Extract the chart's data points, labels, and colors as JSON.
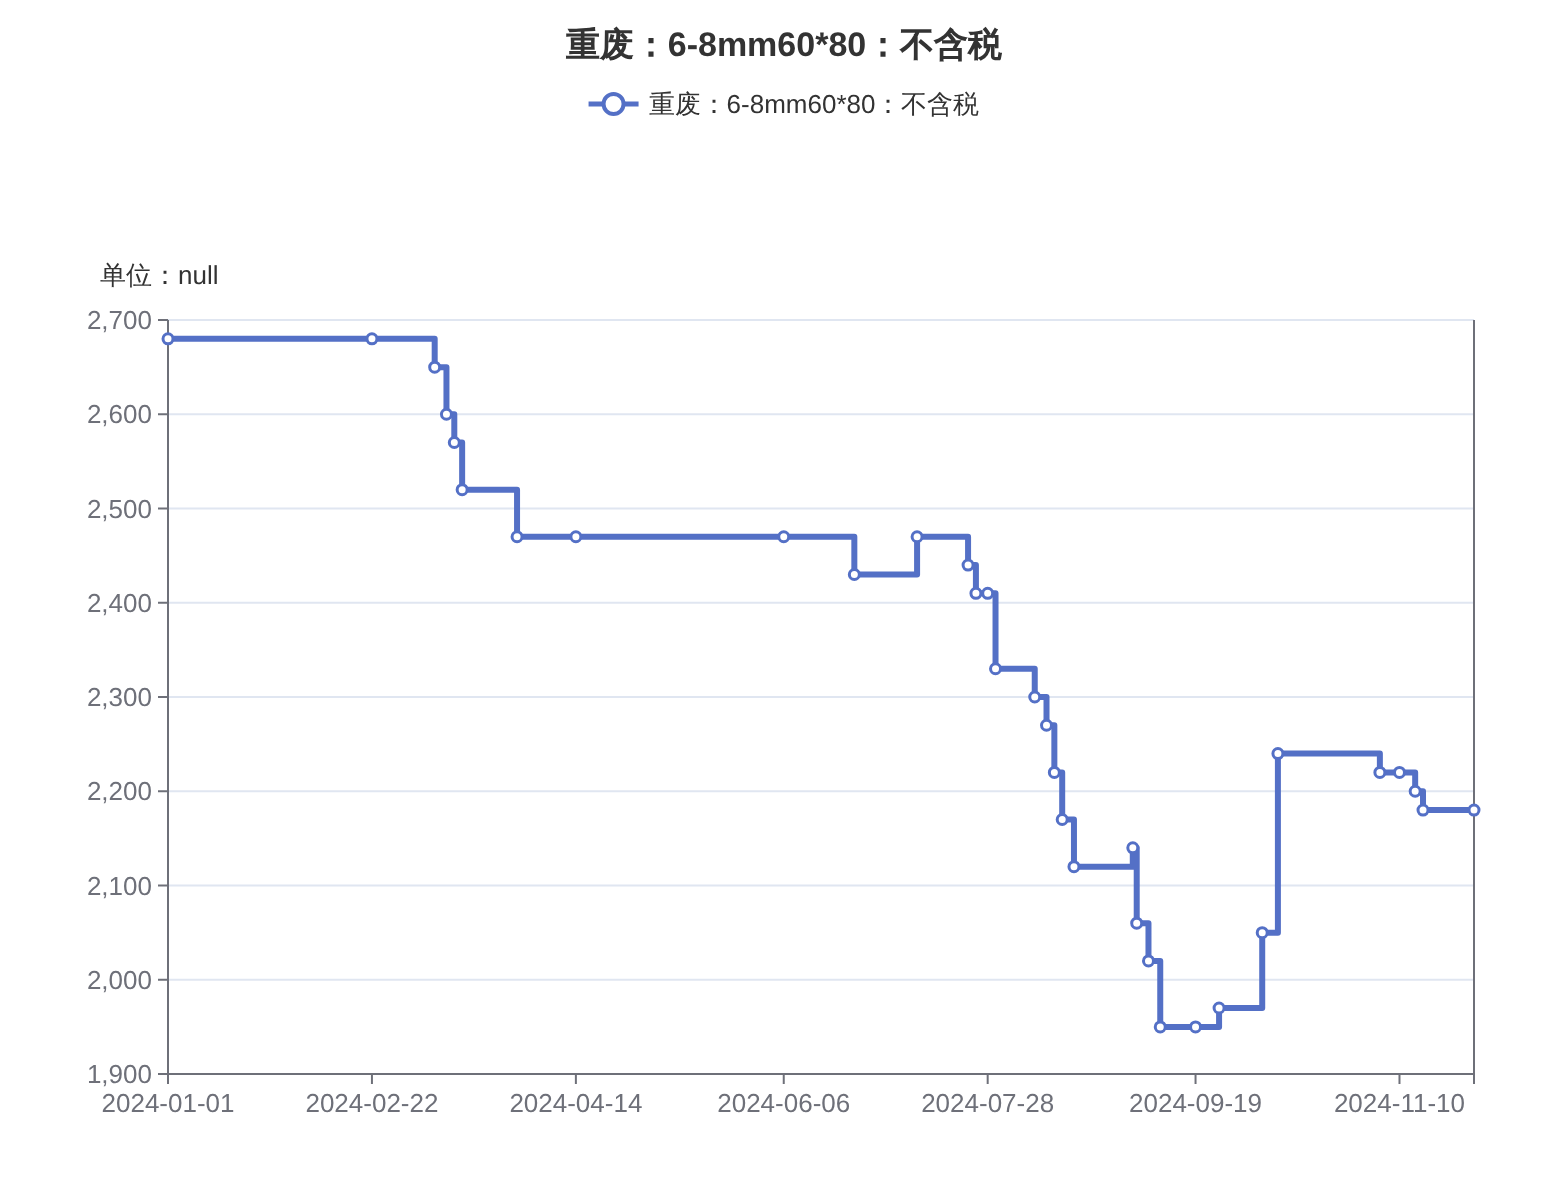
{
  "chart_data": {
    "type": "step",
    "title": "重废：6-8mm60*80：不含税",
    "ylabel": "单位：null",
    "x": [
      "2024-01-01",
      "2024-02-22",
      "2024-03-09",
      "2024-03-12",
      "2024-03-14",
      "2024-03-16",
      "2024-03-30",
      "2024-04-14",
      "2024-06-06",
      "2024-06-24",
      "2024-07-10",
      "2024-07-23",
      "2024-07-25",
      "2024-07-28",
      "2024-07-30",
      "2024-08-09",
      "2024-08-12",
      "2024-08-14",
      "2024-08-16",
      "2024-08-19",
      "2024-09-03",
      "2024-09-04",
      "2024-09-07",
      "2024-09-10",
      "2024-09-19",
      "2024-09-25",
      "2024-10-06",
      "2024-10-10",
      "2024-11-05",
      "2024-11-10",
      "2024-11-14",
      "2024-11-16",
      "2024-11-29"
    ],
    "series": [
      {
        "name": "重废：6-8mm60*80：不含税",
        "color": "#5470c6",
        "values": [
          2680,
          2680,
          2650,
          2600,
          2570,
          2520,
          2470,
          2470,
          2470,
          2430,
          2470,
          2440,
          2410,
          2410,
          2330,
          2300,
          2270,
          2220,
          2170,
          2120,
          2140,
          2060,
          2020,
          1950,
          1950,
          1970,
          2050,
          2240,
          2220,
          2220,
          2200,
          2180,
          2180
        ]
      }
    ],
    "xlim": [
      "2024-01-01",
      "2024-11-29"
    ],
    "xticks": [
      "2024-01-01",
      "2024-02-22",
      "2024-04-14",
      "2024-06-06",
      "2024-07-28",
      "2024-09-19",
      "2024-11-10"
    ],
    "ylim": [
      1900,
      2700
    ],
    "yticks": [
      {
        "value": 1900,
        "label": "1,900"
      },
      {
        "value": 2000,
        "label": "2,000"
      },
      {
        "value": 2100,
        "label": "2,100"
      },
      {
        "value": 2200,
        "label": "2,200"
      },
      {
        "value": 2300,
        "label": "2,300"
      },
      {
        "value": 2400,
        "label": "2,400"
      },
      {
        "value": 2500,
        "label": "2,500"
      },
      {
        "value": 2600,
        "label": "2,600"
      },
      {
        "value": 2700,
        "label": "2,700"
      }
    ],
    "grid": "y",
    "legend": "top",
    "marker": "circle"
  }
}
